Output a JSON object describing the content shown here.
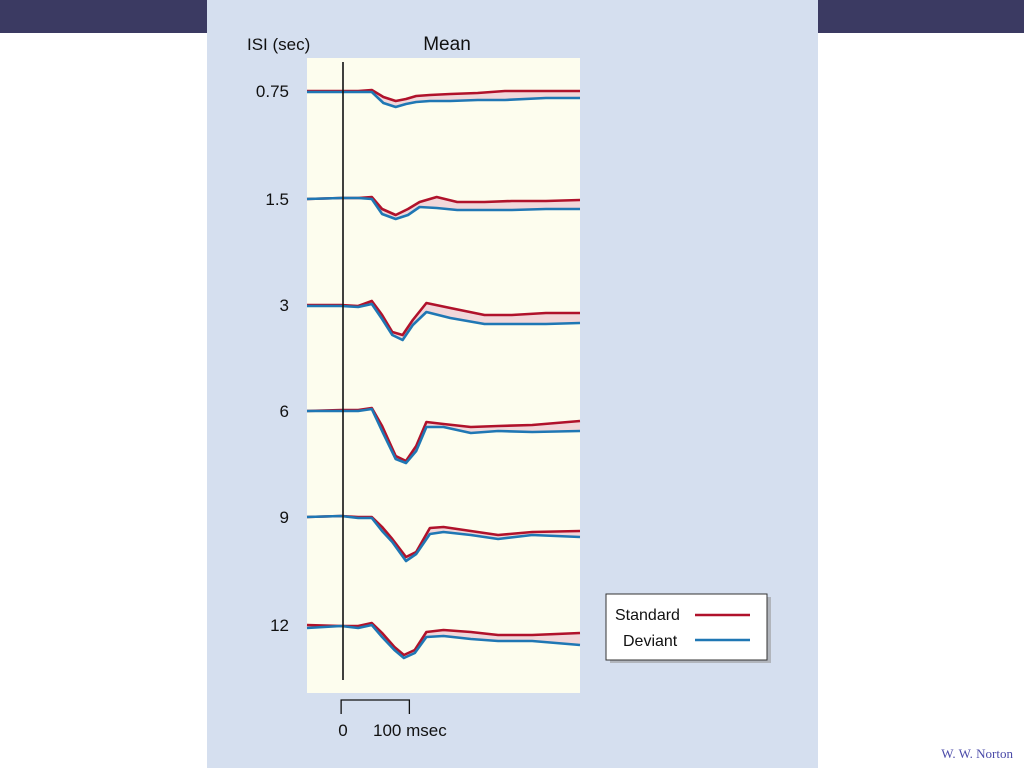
{
  "slide": {
    "credit": "W. W. Norton"
  },
  "colors": {
    "standard": "#b0122b",
    "deviant": "#1f77b4",
    "difference_fill": "#f1d7da",
    "plot_bg": "#fdfdee",
    "panel_bg": "#d5dfef",
    "bar": "#3b3a62"
  },
  "chart_data": {
    "type": "line",
    "title": "Mean",
    "ylabel": "ISI (sec)",
    "time_scale": {
      "zero_label": "0",
      "bar_label": "100 msec",
      "bar_ms": 100
    },
    "x_range_ms": [
      -50,
      350
    ],
    "rows": [
      {
        "isi": "0.75",
        "standard": [
          [
            -50,
            0
          ],
          [
            0,
            0
          ],
          [
            25,
            0
          ],
          [
            45,
            1
          ],
          [
            62,
            -6
          ],
          [
            80,
            -10
          ],
          [
            95,
            -8
          ],
          [
            110,
            -5
          ],
          [
            130,
            -4
          ],
          [
            160,
            -3
          ],
          [
            200,
            -2
          ],
          [
            240,
            0
          ],
          [
            300,
            0
          ],
          [
            350,
            0
          ]
        ],
        "deviant": [
          [
            -50,
            -1
          ],
          [
            0,
            -1
          ],
          [
            25,
            -1
          ],
          [
            45,
            -1
          ],
          [
            62,
            -12
          ],
          [
            80,
            -16
          ],
          [
            95,
            -13
          ],
          [
            110,
            -11
          ],
          [
            130,
            -10
          ],
          [
            160,
            -10
          ],
          [
            200,
            -9
          ],
          [
            240,
            -9
          ],
          [
            300,
            -7
          ],
          [
            350,
            -7
          ]
        ]
      },
      {
        "isi": "1.5",
        "standard": [
          [
            -50,
            0
          ],
          [
            0,
            1
          ],
          [
            25,
            1
          ],
          [
            45,
            2
          ],
          [
            60,
            -10
          ],
          [
            80,
            -16
          ],
          [
            98,
            -10
          ],
          [
            115,
            -3
          ],
          [
            140,
            2
          ],
          [
            170,
            -3
          ],
          [
            210,
            -3
          ],
          [
            250,
            -2
          ],
          [
            300,
            -2
          ],
          [
            350,
            -1
          ]
        ],
        "deviant": [
          [
            -50,
            0
          ],
          [
            0,
            1
          ],
          [
            25,
            1
          ],
          [
            45,
            0
          ],
          [
            60,
            -15
          ],
          [
            80,
            -20
          ],
          [
            98,
            -16
          ],
          [
            115,
            -8
          ],
          [
            140,
            -9
          ],
          [
            170,
            -11
          ],
          [
            210,
            -11
          ],
          [
            250,
            -11
          ],
          [
            300,
            -10
          ],
          [
            350,
            -10
          ]
        ]
      },
      {
        "isi": "3",
        "standard": [
          [
            -50,
            0
          ],
          [
            0,
            0
          ],
          [
            25,
            -1
          ],
          [
            45,
            4
          ],
          [
            60,
            -10
          ],
          [
            75,
            -27
          ],
          [
            90,
            -30
          ],
          [
            105,
            -15
          ],
          [
            125,
            2
          ],
          [
            160,
            -3
          ],
          [
            210,
            -10
          ],
          [
            250,
            -10
          ],
          [
            300,
            -8
          ],
          [
            350,
            -8
          ]
        ],
        "deviant": [
          [
            -50,
            -1
          ],
          [
            0,
            -1
          ],
          [
            25,
            -2
          ],
          [
            45,
            1
          ],
          [
            60,
            -14
          ],
          [
            75,
            -30
          ],
          [
            90,
            -35
          ],
          [
            105,
            -20
          ],
          [
            125,
            -7
          ],
          [
            160,
            -13
          ],
          [
            210,
            -19
          ],
          [
            250,
            -19
          ],
          [
            300,
            -19
          ],
          [
            350,
            -18
          ]
        ]
      },
      {
        "isi": "6",
        "standard": [
          [
            -50,
            0
          ],
          [
            0,
            1
          ],
          [
            25,
            1
          ],
          [
            45,
            3
          ],
          [
            60,
            -15
          ],
          [
            80,
            -45
          ],
          [
            95,
            -50
          ],
          [
            110,
            -35
          ],
          [
            125,
            -11
          ],
          [
            150,
            -13
          ],
          [
            190,
            -16
          ],
          [
            230,
            -15
          ],
          [
            280,
            -14
          ],
          [
            350,
            -10
          ]
        ],
        "deviant": [
          [
            -50,
            0
          ],
          [
            0,
            0
          ],
          [
            25,
            0
          ],
          [
            45,
            2
          ],
          [
            60,
            -20
          ],
          [
            80,
            -48
          ],
          [
            95,
            -52
          ],
          [
            110,
            -40
          ],
          [
            125,
            -16
          ],
          [
            150,
            -16
          ],
          [
            190,
            -22
          ],
          [
            230,
            -20
          ],
          [
            280,
            -21
          ],
          [
            350,
            -20
          ]
        ]
      },
      {
        "isi": "9",
        "standard": [
          [
            -50,
            0
          ],
          [
            0,
            1
          ],
          [
            25,
            0
          ],
          [
            45,
            0
          ],
          [
            60,
            -10
          ],
          [
            75,
            -22
          ],
          [
            95,
            -40
          ],
          [
            110,
            -35
          ],
          [
            130,
            -11
          ],
          [
            150,
            -10
          ],
          [
            190,
            -14
          ],
          [
            230,
            -18
          ],
          [
            280,
            -15
          ],
          [
            350,
            -14
          ]
        ],
        "deviant": [
          [
            -50,
            0
          ],
          [
            0,
            1
          ],
          [
            25,
            -1
          ],
          [
            45,
            -1
          ],
          [
            60,
            -14
          ],
          [
            75,
            -25
          ],
          [
            95,
            -44
          ],
          [
            110,
            -37
          ],
          [
            130,
            -17
          ],
          [
            150,
            -15
          ],
          [
            190,
            -18
          ],
          [
            230,
            -22
          ],
          [
            280,
            -18
          ],
          [
            350,
            -20
          ]
        ]
      },
      {
        "isi": "12",
        "standard": [
          [
            -50,
            0
          ],
          [
            0,
            -1
          ],
          [
            25,
            -1
          ],
          [
            45,
            2
          ],
          [
            60,
            -8
          ],
          [
            78,
            -22
          ],
          [
            92,
            -30
          ],
          [
            108,
            -25
          ],
          [
            125,
            -7
          ],
          [
            150,
            -5
          ],
          [
            190,
            -7
          ],
          [
            230,
            -10
          ],
          [
            280,
            -10
          ],
          [
            350,
            -8
          ]
        ],
        "deviant": [
          [
            -50,
            -3
          ],
          [
            0,
            -1
          ],
          [
            25,
            -3
          ],
          [
            45,
            0
          ],
          [
            60,
            -12
          ],
          [
            78,
            -25
          ],
          [
            92,
            -33
          ],
          [
            108,
            -28
          ],
          [
            125,
            -12
          ],
          [
            150,
            -11
          ],
          [
            190,
            -14
          ],
          [
            230,
            -16
          ],
          [
            280,
            -16
          ],
          [
            350,
            -20
          ]
        ]
      }
    ],
    "legend": {
      "position": "bottom-right",
      "entries": [
        {
          "label": "Standard",
          "color": "#b0122b"
        },
        {
          "label": "Deviant",
          "color": "#1f77b4"
        }
      ]
    }
  }
}
